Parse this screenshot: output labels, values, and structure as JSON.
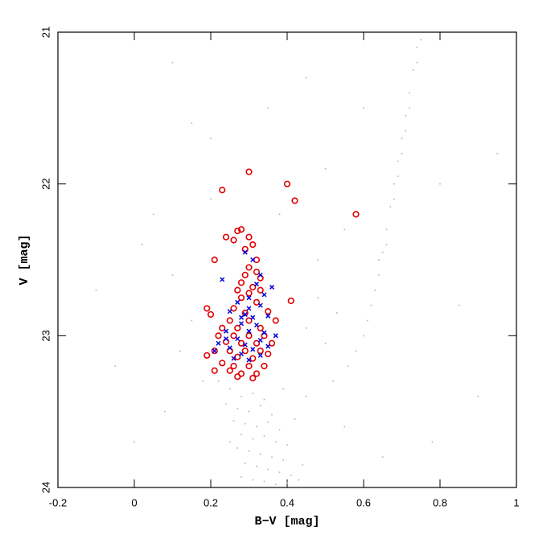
{
  "chart_data": {
    "type": "scatter",
    "xlabel": "B−V [mag]",
    "ylabel": "V [mag]",
    "xlim": [
      -0.2,
      1
    ],
    "xticks": [
      -0.2,
      0,
      0.2,
      0.4,
      0.6,
      0.8,
      1
    ],
    "ylim": [
      21,
      24
    ],
    "yticks": [
      21,
      22,
      23,
      24
    ],
    "y_inverted": true,
    "series": [
      {
        "marker": "dot",
        "color": "#bdbdbd",
        "x": [
          0.25,
          0.28,
          0.31,
          0.34,
          0.27,
          0.3,
          0.33,
          0.36,
          0.26,
          0.29,
          0.32,
          0.35,
          0.38,
          0.28,
          0.31,
          0.34,
          0.37,
          0.4,
          0.27,
          0.3,
          0.33,
          0.36,
          0.39,
          0.29,
          0.32,
          0.35,
          0.38,
          0.41,
          0.28,
          0.31,
          0.34,
          0.37,
          0.4,
          0.43,
          0.24,
          0.22,
          0.39,
          0.42,
          0.25,
          0.44,
          0.6,
          0.62,
          0.64,
          0.65,
          0.66,
          0.67,
          0.68,
          0.69,
          0.7,
          0.71,
          0.72,
          0.73,
          0.74,
          0.75,
          0.63,
          0.66,
          0.68,
          0.7,
          0.72,
          0.74,
          0.58,
          0.61,
          0.56,
          0.64,
          0.69,
          0.71,
          0.45,
          0.5,
          0.53,
          0.48,
          0.05,
          0.02,
          0.1,
          0.15,
          0.12,
          0.18,
          0.08,
          0.0,
          0.2,
          0.15,
          0.35,
          0.5,
          0.55,
          0.48,
          0.6,
          0.8,
          0.85,
          0.9,
          0.78,
          0.65,
          0.55,
          0.1,
          0.45,
          0.95,
          -0.1,
          -0.05,
          0.2,
          0.38,
          0.45,
          0.52
        ],
        "y": [
          23.35,
          23.4,
          23.38,
          23.42,
          23.48,
          23.5,
          23.46,
          23.52,
          23.56,
          23.58,
          23.6,
          23.57,
          23.62,
          23.65,
          23.68,
          23.66,
          23.7,
          23.72,
          23.74,
          23.76,
          23.78,
          23.8,
          23.82,
          23.84,
          23.86,
          23.88,
          23.9,
          23.92,
          23.93,
          23.95,
          23.96,
          23.98,
          23.97,
          23.95,
          23.45,
          23.3,
          23.35,
          23.55,
          23.7,
          23.85,
          23.0,
          22.8,
          22.6,
          22.45,
          22.3,
          22.15,
          22.0,
          21.85,
          21.7,
          21.55,
          21.4,
          21.25,
          21.1,
          21.05,
          22.7,
          22.4,
          22.1,
          21.8,
          21.5,
          21.2,
          23.1,
          22.9,
          23.2,
          22.5,
          21.95,
          21.65,
          22.95,
          23.05,
          22.85,
          22.75,
          22.2,
          22.4,
          22.6,
          22.9,
          23.1,
          23.3,
          23.5,
          23.7,
          21.7,
          21.6,
          21.5,
          21.9,
          22.3,
          22.5,
          21.5,
          22.0,
          22.8,
          23.4,
          23.7,
          23.8,
          23.6,
          21.2,
          21.3,
          21.8,
          22.7,
          23.2,
          22.1,
          22.2,
          23.4,
          23.3
        ]
      },
      {
        "marker": "circle",
        "color": "#e00000",
        "x": [
          0.3,
          0.23,
          0.4,
          0.42,
          0.58,
          0.28,
          0.27,
          0.24,
          0.26,
          0.3,
          0.31,
          0.29,
          0.21,
          0.32,
          0.3,
          0.32,
          0.29,
          0.33,
          0.28,
          0.31,
          0.27,
          0.3,
          0.33,
          0.41,
          0.28,
          0.32,
          0.19,
          0.2,
          0.26,
          0.29,
          0.35,
          0.25,
          0.3,
          0.37,
          0.23,
          0.27,
          0.33,
          0.22,
          0.26,
          0.3,
          0.34,
          0.24,
          0.28,
          0.32,
          0.36,
          0.21,
          0.25,
          0.29,
          0.33,
          0.19,
          0.27,
          0.31,
          0.35,
          0.23,
          0.26,
          0.3,
          0.34,
          0.21,
          0.25,
          0.28,
          0.32,
          0.27,
          0.31
        ],
        "y": [
          21.92,
          22.04,
          22.0,
          22.11,
          22.2,
          22.3,
          22.31,
          22.35,
          22.37,
          22.35,
          22.4,
          22.43,
          22.5,
          22.5,
          22.55,
          22.58,
          22.6,
          22.62,
          22.65,
          22.68,
          22.7,
          22.72,
          22.7,
          22.77,
          22.75,
          22.78,
          22.82,
          22.86,
          22.82,
          22.85,
          22.84,
          22.9,
          22.9,
          22.9,
          22.95,
          22.95,
          22.95,
          23.0,
          23.0,
          23.0,
          23.0,
          23.04,
          23.05,
          23.05,
          23.05,
          23.1,
          23.1,
          23.1,
          23.1,
          23.13,
          23.14,
          23.15,
          23.12,
          23.18,
          23.2,
          23.2,
          23.2,
          23.23,
          23.23,
          23.25,
          23.25,
          23.27,
          23.28
        ]
      },
      {
        "marker": "cross",
        "color": "#0000dd",
        "x": [
          0.29,
          0.31,
          0.23,
          0.33,
          0.32,
          0.36,
          0.34,
          0.3,
          0.27,
          0.33,
          0.25,
          0.29,
          0.31,
          0.35,
          0.28,
          0.32,
          0.24,
          0.3,
          0.37,
          0.27,
          0.33,
          0.22,
          0.29,
          0.35,
          0.25,
          0.31,
          0.21,
          0.28,
          0.33,
          0.26,
          0.3,
          0.24,
          0.34,
          0.28,
          0.3
        ],
        "y": [
          22.45,
          22.5,
          22.63,
          22.6,
          22.66,
          22.68,
          22.73,
          22.75,
          22.78,
          22.8,
          22.84,
          22.86,
          22.88,
          22.87,
          22.92,
          22.93,
          22.97,
          22.97,
          23.0,
          23.02,
          23.03,
          23.05,
          23.06,
          23.07,
          23.08,
          23.09,
          23.1,
          23.12,
          23.13,
          23.15,
          23.16,
          23.02,
          22.98,
          22.88,
          22.82
        ]
      }
    ]
  }
}
